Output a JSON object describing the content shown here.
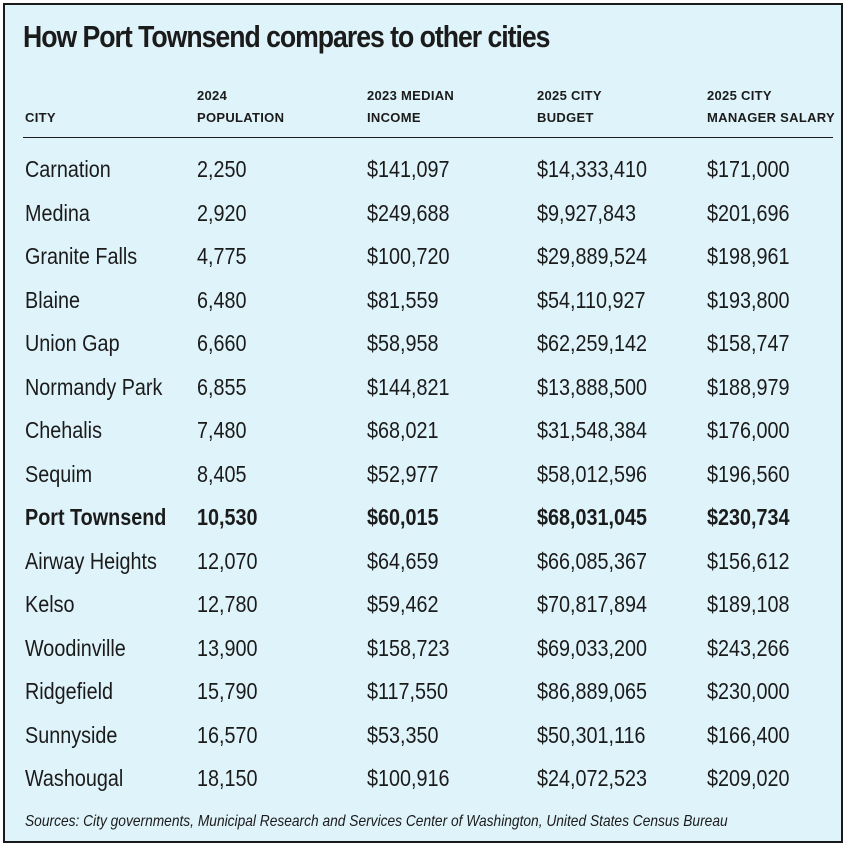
{
  "title": "How Port Townsend compares to other cities",
  "columns": [
    {
      "line1": "",
      "line2": "CITY"
    },
    {
      "line1": "2024",
      "line2": "POPULATION"
    },
    {
      "line1": "2023 MEDIAN",
      "line2": "INCOME"
    },
    {
      "line1": "2025 CITY",
      "line2": "BUDGET"
    },
    {
      "line1": "2025 CITY",
      "line2": "MANAGER SALARY"
    }
  ],
  "rows": [
    {
      "city": "Carnation",
      "population": "2,250",
      "income": "$141,097",
      "budget": "$14,333,410",
      "salary": "$171,000"
    },
    {
      "city": "Medina",
      "population": "2,920",
      "income": "$249,688",
      "budget": "$9,927,843",
      "salary": "$201,696"
    },
    {
      "city": "Granite Falls",
      "population": "4,775",
      "income": "$100,720",
      "budget": "$29,889,524",
      "salary": "$198,961"
    },
    {
      "city": "Blaine",
      "population": "6,480",
      "income": "$81,559",
      "budget": "$54,110,927",
      "salary": "$193,800"
    },
    {
      "city": "Union Gap",
      "population": "6,660",
      "income": "$58,958",
      "budget": "$62,259,142",
      "salary": "$158,747"
    },
    {
      "city": "Normandy Park",
      "population": "6,855",
      "income": "$144,821",
      "budget": "$13,888,500",
      "salary": "$188,979"
    },
    {
      "city": "Chehalis",
      "population": "7,480",
      "income": "$68,021",
      "budget": "$31,548,384",
      "salary": "$176,000"
    },
    {
      "city": "Sequim",
      "population": "8,405",
      "income": "$52,977",
      "budget": "$58,012,596",
      "salary": "$196,560"
    },
    {
      "city": "Port Townsend",
      "population": "10,530",
      "income": "$60,015",
      "budget": "$68,031,045",
      "salary": "$230,734",
      "highlight": true
    },
    {
      "city": "Airway Heights",
      "population": "12,070",
      "income": "$64,659",
      "budget": "$66,085,367",
      "salary": "$156,612"
    },
    {
      "city": "Kelso",
      "population": "12,780",
      "income": "$59,462",
      "budget": "$70,817,894",
      "salary": "$189,108"
    },
    {
      "city": "Woodinville",
      "population": "13,900",
      "income": "$158,723",
      "budget": "$69,033,200",
      "salary": "$243,266"
    },
    {
      "city": "Ridgefield",
      "population": "15,790",
      "income": "$117,550",
      "budget": "$86,889,065",
      "salary": "$230,000"
    },
    {
      "city": "Sunnyside",
      "population": "16,570",
      "income": "$53,350",
      "budget": "$50,301,116",
      "salary": "$166,400"
    },
    {
      "city": "Washougal",
      "population": "18,150",
      "income": "$100,916",
      "budget": "$24,072,523",
      "salary": "$209,020"
    }
  ],
  "source": "Sources: City governments, Municipal Research and Services Center of Washington, United States Census Bureau",
  "colors": {
    "background": "#dff3fa",
    "text": "#1b1b1b",
    "border": "#1a1a1a"
  }
}
